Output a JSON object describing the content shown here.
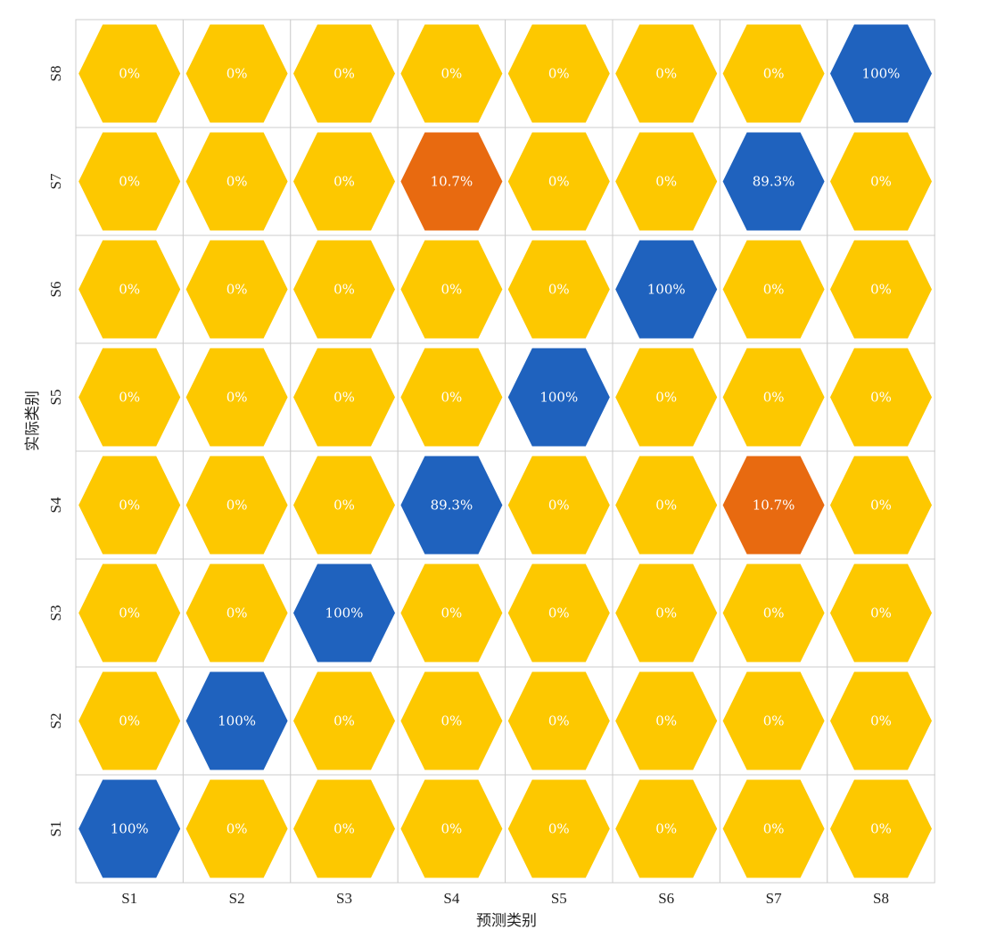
{
  "chart_data": {
    "type": "heatmap",
    "title": "",
    "xlabel": "预测类别",
    "ylabel": "实际类别",
    "x_categories": [
      "S1",
      "S2",
      "S3",
      "S4",
      "S5",
      "S6",
      "S7",
      "S8"
    ],
    "y_categories": [
      "S1",
      "S2",
      "S3",
      "S4",
      "S5",
      "S6",
      "S7",
      "S8"
    ],
    "values": [
      [
        100,
        0,
        0,
        0,
        0,
        0,
        0,
        0
      ],
      [
        0,
        100,
        0,
        0,
        0,
        0,
        0,
        0
      ],
      [
        0,
        0,
        100,
        0,
        0,
        0,
        0,
        0
      ],
      [
        0,
        0,
        0,
        89.3,
        0,
        0,
        10.7,
        0
      ],
      [
        0,
        0,
        0,
        0,
        100,
        0,
        0,
        0
      ],
      [
        0,
        0,
        0,
        0,
        0,
        100,
        0,
        0
      ],
      [
        0,
        0,
        0,
        10.7,
        0,
        0,
        89.3,
        0
      ],
      [
        0,
        0,
        0,
        0,
        0,
        0,
        0,
        100
      ]
    ],
    "value_labels": [
      [
        "100%",
        "0%",
        "0%",
        "0%",
        "0%",
        "0%",
        "0%",
        "0%"
      ],
      [
        "0%",
        "100%",
        "0%",
        "0%",
        "0%",
        "0%",
        "0%",
        "0%"
      ],
      [
        "0%",
        "0%",
        "100%",
        "0%",
        "0%",
        "0%",
        "0%",
        "0%"
      ],
      [
        "0%",
        "0%",
        "0%",
        "89.3%",
        "0%",
        "0%",
        "10.7%",
        "0%"
      ],
      [
        "0%",
        "0%",
        "0%",
        "0%",
        "100%",
        "0%",
        "0%",
        "0%"
      ],
      [
        "0%",
        "0%",
        "0%",
        "0%",
        "0%",
        "100%",
        "0%",
        "0%"
      ],
      [
        "0%",
        "0%",
        "0%",
        "10.7%",
        "0%",
        "0%",
        "89.3%",
        "0%"
      ],
      [
        "0%",
        "0%",
        "0%",
        "0%",
        "0%",
        "0%",
        "0%",
        "100%"
      ]
    ],
    "cell_shape": "hexagon",
    "colors": {
      "zero": "#FDC800",
      "low": "#E86A10",
      "high": "#1F62BE",
      "grid": "#cccccc"
    },
    "y_order": "bottom-to-top"
  }
}
